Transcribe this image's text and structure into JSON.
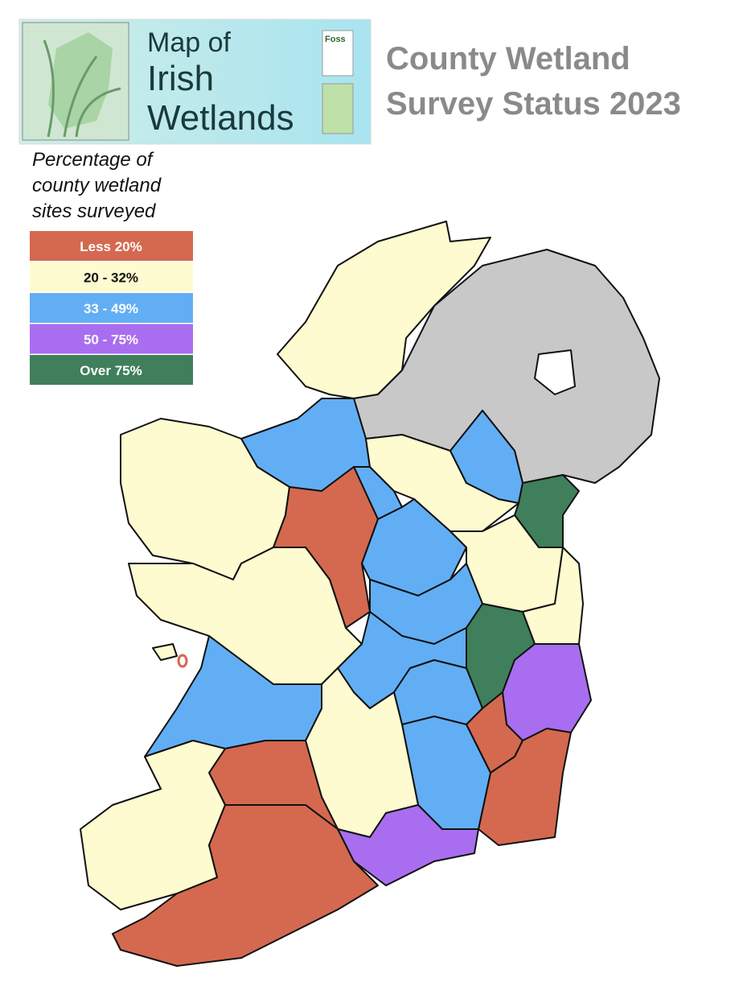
{
  "header": {
    "logo_lines": [
      "Map of",
      "Irish",
      "Wetlands"
    ],
    "sponsor": "Foss",
    "title_lines": [
      "County Wetland",
      "Survey Status 2023"
    ]
  },
  "legend": {
    "title_lines": [
      "Percentage of",
      "county wetland",
      "sites surveyed"
    ],
    "items": [
      {
        "label": "Less 20%",
        "color": "#d4694f"
      },
      {
        "label": "20 - 32%",
        "color": "#fdfbcf"
      },
      {
        "label": "33 - 49%",
        "color": "#62aef5"
      },
      {
        "label": "50 - 75%",
        "color": "#a96ef0"
      },
      {
        "label": "Over 75%",
        "color": "#3f7f5b"
      }
    ]
  }
}
